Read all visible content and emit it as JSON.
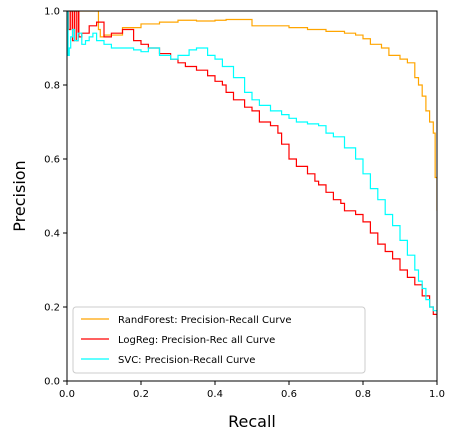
{
  "chart_data": {
    "type": "line",
    "title": "",
    "xlabel": "Recall",
    "ylabel": "Precision",
    "xlim": [
      0.0,
      1.0
    ],
    "ylim": [
      0.0,
      1.0
    ],
    "x_ticks": [
      "0.0",
      "0.2",
      "0.4",
      "0.6",
      "0.8",
      "1.0"
    ],
    "y_ticks": [
      "0.0",
      "0.2",
      "0.4",
      "0.6",
      "0.8",
      "1.0"
    ],
    "grid": false,
    "legend_position": "lower-left",
    "series": [
      {
        "name": "RandForest: Precision-Recall Curve",
        "color": "#FFA500",
        "x": [
          0.0,
          0.005,
          0.01,
          0.02,
          0.03,
          0.04,
          0.06,
          0.08,
          0.085,
          0.09,
          0.1,
          0.15,
          0.2,
          0.25,
          0.3,
          0.35,
          0.4,
          0.43,
          0.5,
          0.55,
          0.6,
          0.65,
          0.7,
          0.75,
          0.78,
          0.8,
          0.82,
          0.85,
          0.87,
          0.9,
          0.92,
          0.94,
          0.95,
          0.96,
          0.97,
          0.98,
          0.99,
          0.995,
          1.0
        ],
        "y": [
          1.0,
          1.0,
          1.0,
          1.0,
          1.0,
          1.0,
          1.0,
          1.0,
          0.95,
          0.93,
          0.935,
          0.955,
          0.965,
          0.97,
          0.975,
          0.973,
          0.975,
          0.977,
          0.96,
          0.96,
          0.955,
          0.95,
          0.945,
          0.94,
          0.935,
          0.925,
          0.91,
          0.9,
          0.88,
          0.87,
          0.86,
          0.82,
          0.8,
          0.77,
          0.73,
          0.7,
          0.67,
          0.55,
          0.46
        ]
      },
      {
        "name": "LogReg: Precision-Rec all Curve",
        "color": "#FF0000",
        "x": [
          0.0,
          0.005,
          0.01,
          0.015,
          0.02,
          0.025,
          0.03,
          0.032,
          0.04,
          0.06,
          0.08,
          0.1,
          0.12,
          0.15,
          0.18,
          0.2,
          0.22,
          0.25,
          0.28,
          0.3,
          0.32,
          0.35,
          0.38,
          0.4,
          0.42,
          0.43,
          0.45,
          0.48,
          0.5,
          0.52,
          0.55,
          0.57,
          0.58,
          0.6,
          0.62,
          0.65,
          0.67,
          0.68,
          0.7,
          0.72,
          0.74,
          0.75,
          0.78,
          0.8,
          0.82,
          0.84,
          0.86,
          0.88,
          0.9,
          0.92,
          0.94,
          0.96,
          0.98,
          0.99,
          1.0
        ],
        "y": [
          1.0,
          0.95,
          1.0,
          0.92,
          1.0,
          0.92,
          1.0,
          0.93,
          0.94,
          0.96,
          0.97,
          0.93,
          0.94,
          0.95,
          0.92,
          0.91,
          0.9,
          0.885,
          0.87,
          0.86,
          0.85,
          0.84,
          0.825,
          0.81,
          0.8,
          0.78,
          0.76,
          0.74,
          0.73,
          0.7,
          0.69,
          0.67,
          0.64,
          0.6,
          0.58,
          0.56,
          0.54,
          0.53,
          0.51,
          0.49,
          0.48,
          0.46,
          0.45,
          0.43,
          0.4,
          0.37,
          0.35,
          0.33,
          0.3,
          0.28,
          0.26,
          0.23,
          0.2,
          0.18,
          0.17
        ]
      },
      {
        "name": "SVC: Precision-Recall Curve",
        "color": "#00FFFF",
        "x": [
          0.0,
          0.003,
          0.006,
          0.01,
          0.015,
          0.02,
          0.03,
          0.04,
          0.05,
          0.06,
          0.07,
          0.08,
          0.1,
          0.12,
          0.15,
          0.18,
          0.2,
          0.22,
          0.25,
          0.28,
          0.3,
          0.33,
          0.35,
          0.38,
          0.4,
          0.42,
          0.45,
          0.48,
          0.5,
          0.52,
          0.55,
          0.58,
          0.6,
          0.62,
          0.65,
          0.68,
          0.7,
          0.72,
          0.75,
          0.78,
          0.8,
          0.82,
          0.84,
          0.86,
          0.88,
          0.9,
          0.92,
          0.94,
          0.95,
          0.96,
          0.97,
          0.98,
          0.99,
          1.0
        ],
        "y": [
          1.0,
          0.88,
          0.9,
          0.93,
          0.95,
          0.92,
          0.94,
          0.91,
          0.92,
          0.93,
          0.94,
          0.92,
          0.91,
          0.9,
          0.9,
          0.895,
          0.89,
          0.9,
          0.88,
          0.87,
          0.88,
          0.895,
          0.9,
          0.88,
          0.87,
          0.85,
          0.82,
          0.78,
          0.76,
          0.745,
          0.73,
          0.72,
          0.71,
          0.7,
          0.695,
          0.69,
          0.67,
          0.66,
          0.63,
          0.6,
          0.56,
          0.52,
          0.49,
          0.45,
          0.42,
          0.38,
          0.34,
          0.3,
          0.27,
          0.25,
          0.22,
          0.2,
          0.19,
          0.18
        ]
      }
    ]
  }
}
